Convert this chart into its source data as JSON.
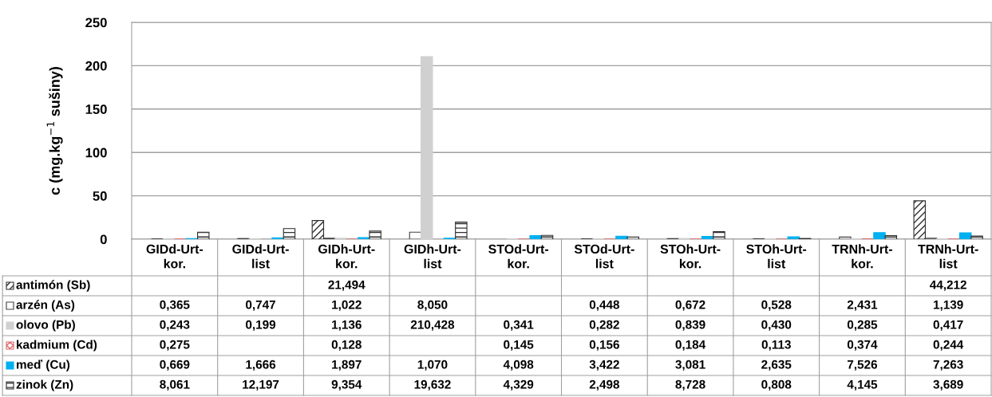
{
  "chart_data": {
    "type": "bar",
    "ylabel": "c (mg.kg$^{−1}$ sušiny)",
    "categories": [
      "GIDd-Urt-kor.",
      "GIDd-Urt-list",
      "GIDh-Urt-kor.",
      "GIDh-Urt-list",
      "STOd-Urt-kor.",
      "STOd-Urt-list",
      "STOh-Urt-kor.",
      "STOh-Urt-list",
      "TRNh-Urt-kor.",
      "TRNh-Urt-list"
    ],
    "legend": "bottom left",
    "ylim": [
      0,
      250
    ],
    "yticks": [
      0,
      50,
      100,
      150,
      200,
      250
    ],
    "grid": "y",
    "series": [
      {
        "name": "antimón (Sb)",
        "color": "#303030",
        "values": [
          null,
          null,
          21.494,
          null,
          null,
          null,
          null,
          null,
          null,
          44.212
        ],
        "value_labels": [
          null,
          null,
          "21,494",
          null,
          null,
          null,
          null,
          null,
          null,
          "44,212"
        ]
      },
      {
        "name": "arzén (As)",
        "color": "#ffffff",
        "values": [
          0.365,
          0.747,
          1.022,
          8.05,
          null,
          0.448,
          0.672,
          0.528,
          2.431,
          1.139
        ],
        "value_labels": [
          "0,365",
          "0,747",
          "1,022",
          "8,050",
          null,
          "0,448",
          "0,672",
          "0,528",
          "2,431",
          "1,139"
        ]
      },
      {
        "name": "olovo (Pb)",
        "color": "#d0d0d0",
        "values": [
          0.243,
          0.199,
          1.136,
          210.428,
          0.341,
          0.282,
          0.839,
          0.43,
          0.285,
          0.417
        ],
        "value_labels": [
          "0,243",
          "0,199",
          "1,136",
          "210,428",
          "0,341",
          "0,282",
          "0,839",
          "0,430",
          "0,285",
          "0,417"
        ]
      },
      {
        "name": "kadmium (Cd)",
        "color": "#e06666",
        "values": [
          0.275,
          null,
          0.128,
          null,
          0.145,
          0.156,
          0.184,
          0.113,
          0.374,
          0.244
        ],
        "value_labels": [
          "0,275",
          null,
          "0,128",
          null,
          "0,145",
          "0,156",
          "0,184",
          "0,113",
          "0,374",
          "0,244"
        ]
      },
      {
        "name": "meď (Cu)",
        "color": "#00b0f0",
        "values": [
          0.669,
          1.666,
          1.897,
          1.07,
          4.098,
          3.422,
          3.081,
          2.635,
          7.526,
          7.263
        ],
        "value_labels": [
          "0,669",
          "1,666",
          "1,897",
          "1,070",
          "4,098",
          "3,422",
          "3,081",
          "2,635",
          "7,526",
          "7,263"
        ]
      },
      {
        "name": "zinok (Zn)",
        "color": "#303030",
        "values": [
          8.061,
          12.197,
          9.354,
          19.632,
          4.329,
          2.498,
          8.728,
          0.808,
          4.145,
          3.689
        ],
        "value_labels": [
          "8,061",
          "12,197",
          "9,354",
          "19,632",
          "4,329",
          "2,498",
          "8,728",
          "0,808",
          "4,145",
          "3,689"
        ]
      }
    ]
  }
}
